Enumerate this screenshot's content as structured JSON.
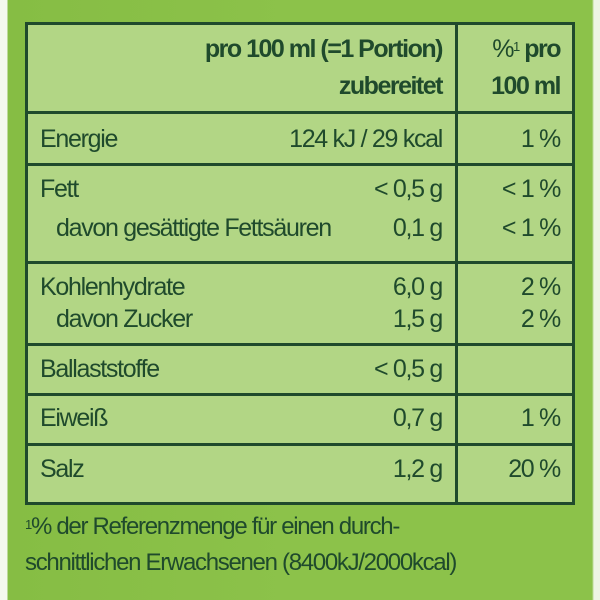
{
  "header": {
    "col1_line1": "pro 100 ml (=1 Portion)",
    "col1_line2": "zubereitet",
    "col2_sup": "1",
    "col2_prefix": "%",
    "col2_line1_rest": "pro",
    "col2_line2": "100 ml"
  },
  "rows": [
    {
      "label": "Energie",
      "value": "124 kJ / 29 kcal",
      "percent": "1 %"
    },
    {
      "label": "Fett",
      "value": "< 0,5 g",
      "percent": "< 1 %"
    },
    {
      "label": "davon gesättigte Fettsäuren",
      "value": "0,1 g",
      "percent": "< 1 %"
    },
    {
      "label": "Kohlenhydrate",
      "value": "6,0 g",
      "percent": "2 %"
    },
    {
      "label": "davon Zucker",
      "value": "1,5 g",
      "percent": "2 %"
    },
    {
      "label": "Ballaststoffe",
      "value": "< 0,5 g",
      "percent": ""
    },
    {
      "label": "Eiweiß",
      "value": "0,7 g",
      "percent": "1 %"
    },
    {
      "label": "Salz",
      "value": "1,2 g",
      "percent": "20 %"
    }
  ],
  "footnote": {
    "sup": "1",
    "line1": "% der Referenzmenge für einen durch-",
    "line2": "schnittlichen Erwachsenen (8400kJ/2000kcal)"
  }
}
